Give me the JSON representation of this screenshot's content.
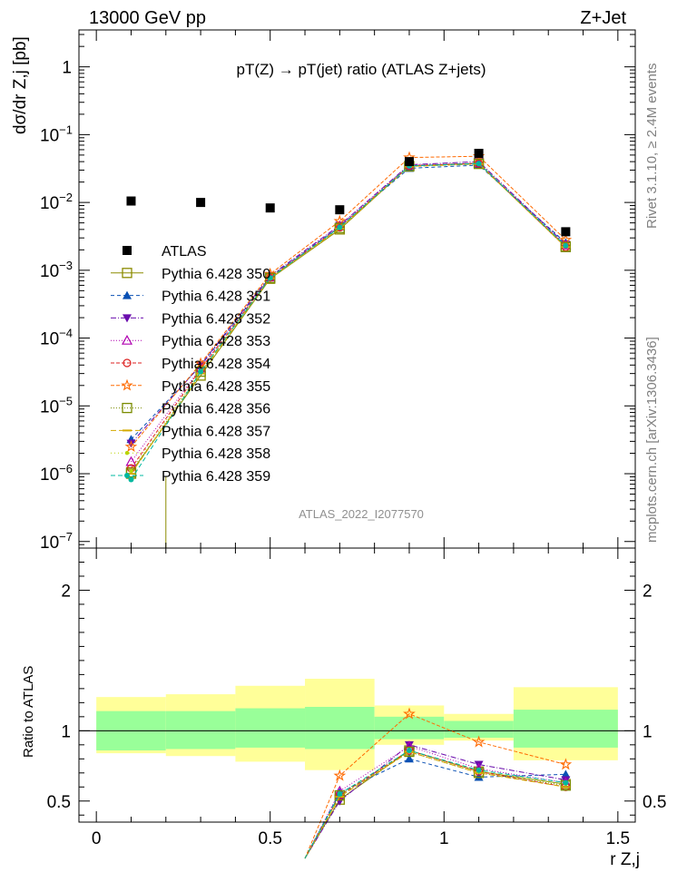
{
  "header": {
    "left": "13000 GeV pp",
    "right": "Z+Jet"
  },
  "side_labels": {
    "rivet": "Rivet 3.1.10, ≥ 2.4M events",
    "mcplots": "mcplots.cern.ch [arXiv:1306.3436]"
  },
  "chart_data": {
    "type": "scatter",
    "title": "pT(Z) → pT(jet) ratio (ATLAS Z+jets)",
    "watermark": "ATLAS_2022_I2077570",
    "ylabel": "dσ/dr Z,j [pb]",
    "xlabel": "r Z,j",
    "ratio_ylabel": "Ratio to ATLAS",
    "xlim": [
      -0.05,
      1.55
    ],
    "ylim": [
      8e-08,
      3.5
    ],
    "yscale": "log",
    "ratio_ylim": [
      0.35,
      2.3
    ],
    "x_ticks": [
      "0",
      "0.5",
      "1",
      "1.5"
    ],
    "y_ticks": [
      "10^-7",
      "10^-6",
      "10^-5",
      "10^-4",
      "10^-3",
      "10^-2",
      "10^-1",
      "1"
    ],
    "ratio_ticks": [
      "0.5",
      "1",
      "2"
    ],
    "bins": [
      [
        0.0,
        0.2
      ],
      [
        0.2,
        0.4
      ],
      [
        0.4,
        0.6
      ],
      [
        0.6,
        0.8
      ],
      [
        0.8,
        1.0
      ],
      [
        1.0,
        1.2
      ],
      [
        1.2,
        1.5
      ]
    ],
    "x": [
      0.1,
      0.3,
      0.5,
      0.7,
      0.9,
      1.1,
      1.35
    ],
    "data": {
      "name": "ATLAS",
      "y": [
        0.0105,
        0.01,
        0.0083,
        0.0078,
        0.04,
        0.053,
        0.0037
      ]
    },
    "band_inner": [
      [
        0.86,
        1.14
      ],
      [
        0.87,
        1.14
      ],
      [
        0.88,
        1.16
      ],
      [
        0.87,
        1.17
      ],
      [
        0.94,
        1.1
      ],
      [
        0.95,
        1.07
      ],
      [
        0.88,
        1.15
      ]
    ],
    "band_outer": [
      [
        0.84,
        1.24
      ],
      [
        0.82,
        1.26
      ],
      [
        0.78,
        1.32
      ],
      [
        0.72,
        1.37
      ],
      [
        0.9,
        1.18
      ],
      [
        0.93,
        1.12
      ],
      [
        0.79,
        1.31
      ]
    ],
    "legend_position": "middle-left",
    "series": [
      {
        "name": "Pythia 6.428 350",
        "color": "#8b8b00",
        "marker": "square-open",
        "dash": "",
        "y": [
          1.05e-06,
          2.8e-05,
          0.00075,
          0.004,
          0.0345,
          0.038,
          0.00225
        ],
        "ratio": [
          null,
          null,
          null,
          0.51,
          0.86,
          0.71,
          0.62
        ]
      },
      {
        "name": "Pythia 6.428 351",
        "color": "#0a50b4",
        "marker": "triangle-up",
        "dash": "4,3",
        "y": [
          3.2e-06,
          3.9e-05,
          0.0008,
          0.0044,
          0.032,
          0.0355,
          0.00255
        ],
        "ratio": [
          null,
          null,
          null,
          0.56,
          0.8,
          0.67,
          0.69
        ]
      },
      {
        "name": "Pythia 6.428 352",
        "color": "#6a0dad",
        "marker": "triangle-down",
        "dash": "6,2,1,2",
        "y": [
          2.8e-06,
          4e-05,
          0.00083,
          0.0046,
          0.036,
          0.04,
          0.0024
        ],
        "ratio": [
          null,
          null,
          null,
          0.5,
          0.9,
          0.76,
          0.65
        ]
      },
      {
        "name": "Pythia 6.428 353",
        "color": "#b000b0",
        "marker": "triangle-open",
        "dash": "1,2",
        "y": [
          1.5e-06,
          3.6e-05,
          0.00079,
          0.0045,
          0.0355,
          0.038,
          0.00235
        ],
        "ratio": [
          null,
          null,
          null,
          0.57,
          0.89,
          0.73,
          0.63
        ]
      },
      {
        "name": "Pythia 6.428 354",
        "color": "#dd2222",
        "marker": "circle-open",
        "dash": "4,2",
        "y": [
          1.2e-06,
          3.5e-05,
          0.00078,
          0.0043,
          0.0345,
          0.0375,
          0.0022
        ],
        "ratio": [
          null,
          null,
          null,
          0.54,
          0.86,
          0.71,
          0.6
        ]
      },
      {
        "name": "Pythia 6.428 355",
        "color": "#ff6a00",
        "marker": "star",
        "dash": "4,2",
        "y": [
          2.5e-06,
          4.2e-05,
          0.00088,
          0.0053,
          0.046,
          0.048,
          0.0028
        ],
        "ratio": [
          null,
          null,
          null,
          0.68,
          1.12,
          0.92,
          0.76
        ]
      },
      {
        "name": "Pythia 6.428 356",
        "color": "#7a8b00",
        "marker": "square-open",
        "dash": "1,2",
        "y": [
          1e-06,
          3.2e-05,
          0.00077,
          0.0042,
          0.034,
          0.037,
          0.0022
        ],
        "ratio": [
          null,
          null,
          null,
          0.54,
          0.85,
          0.7,
          0.61
        ]
      },
      {
        "name": "Pythia 6.428 357",
        "color": "#d4aa00",
        "marker": "dash",
        "dash": "6,3",
        "y": [
          1e-06,
          3e-05,
          0.00076,
          0.0041,
          0.034,
          0.037,
          0.0022
        ],
        "ratio": [
          null,
          null,
          null,
          0.53,
          0.85,
          0.7,
          0.6
        ]
      },
      {
        "name": "Pythia 6.428 358",
        "color": "#b8d400",
        "marker": "dot",
        "dash": "1,3",
        "y": [
          1.1e-06,
          3.3e-05,
          0.00078,
          0.0043,
          0.0345,
          0.0375,
          0.00225
        ],
        "ratio": [
          null,
          null,
          null,
          0.55,
          0.86,
          0.71,
          0.62
        ]
      },
      {
        "name": "Pythia 6.428 359",
        "color": "#00b8a0",
        "marker": "circle-filled",
        "dash": "5,3",
        "y": [
          8.2e-07,
          3.2e-05,
          0.00077,
          0.0043,
          0.0345,
          0.0375,
          0.0023
        ],
        "ratio": [
          null,
          null,
          null,
          0.55,
          0.86,
          0.72,
          0.63
        ]
      }
    ]
  }
}
